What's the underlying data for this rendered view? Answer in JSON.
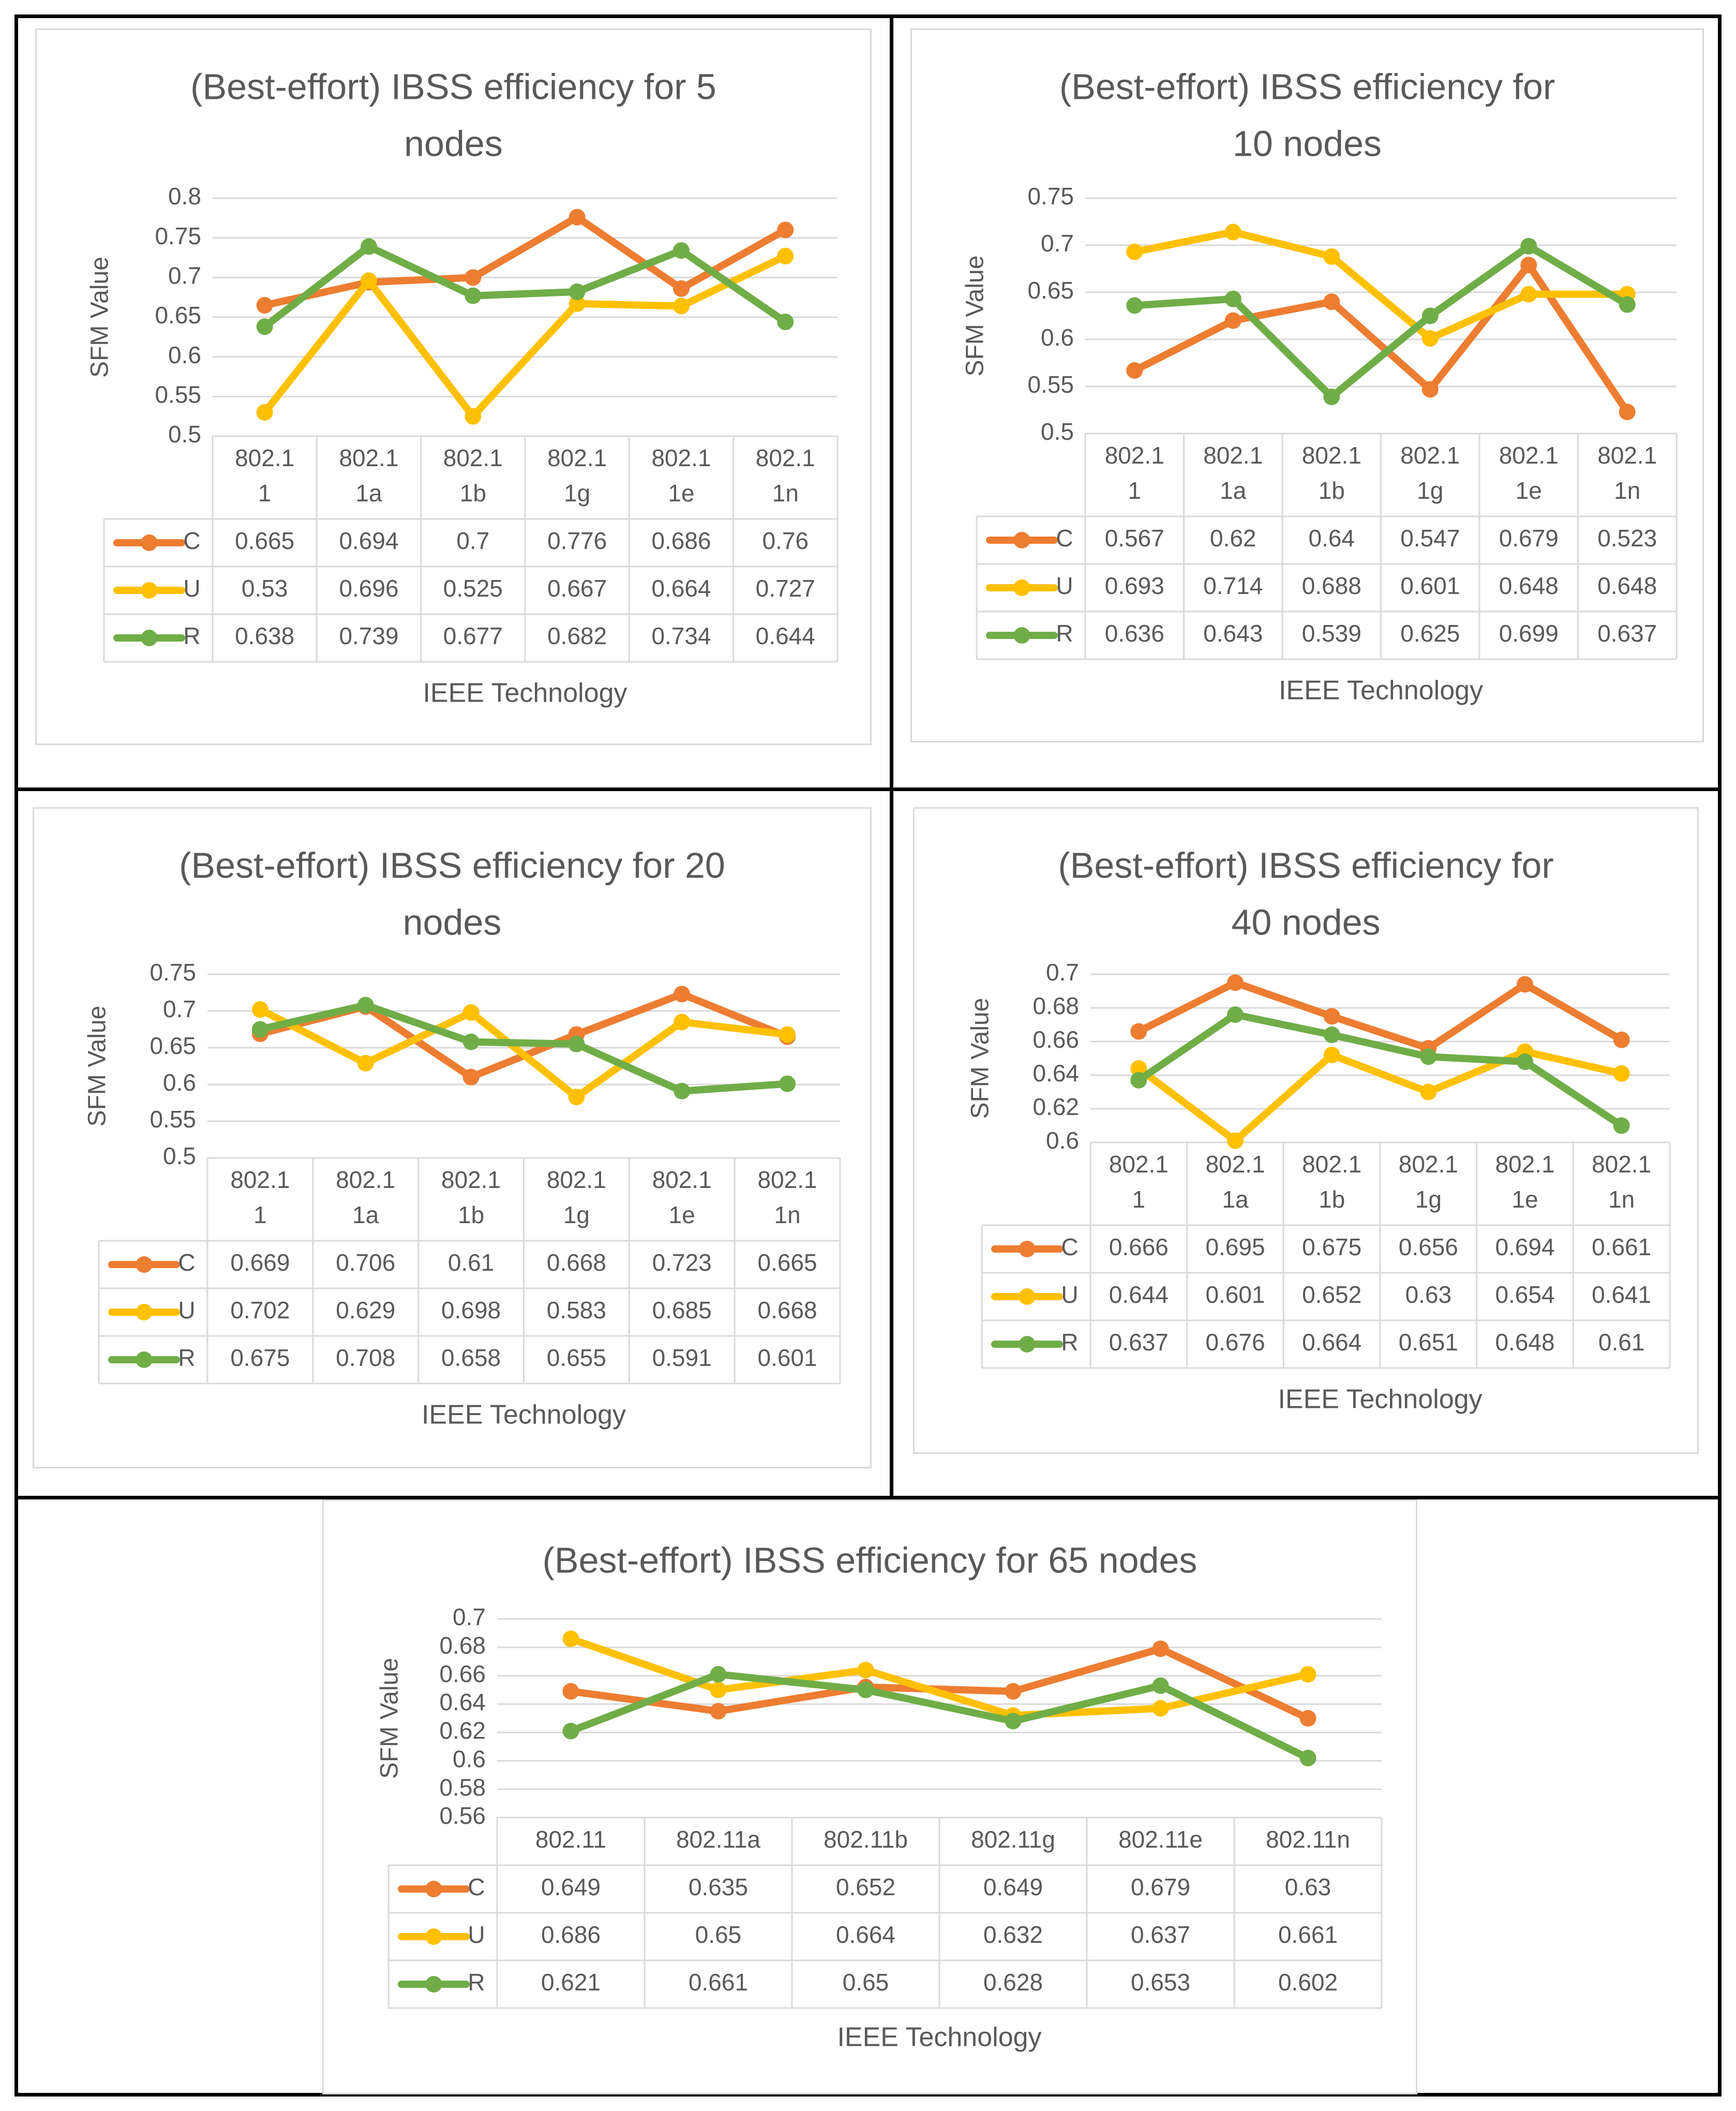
{
  "colors": {
    "C": "#ED7D31",
    "U": "#FFC000",
    "R": "#70AD47",
    "text": "#595959",
    "grid": "#d9d9d9"
  },
  "chart_data": [
    {
      "type": "line",
      "title": "(Best-effort) IBSS efficiency for 5 nodes",
      "title_lines": [
        "(Best-effort) IBSS efficiency for 5",
        "nodes"
      ],
      "ylabel": "SFM Value",
      "xlabel": "IEEE Technology",
      "ylim": [
        0.5,
        0.8
      ],
      "y_ticks": [
        "0.5",
        "0.55",
        "0.6",
        "0.65",
        "0.7",
        "0.75",
        "0.8"
      ],
      "grid": true,
      "legend": "data table",
      "categories": [
        "802.11",
        "802.11a",
        "802.11b",
        "802.11g",
        "802.11e",
        "802.11n"
      ],
      "category_lines": [
        [
          "802.1",
          "1"
        ],
        [
          "802.1",
          "1a"
        ],
        [
          "802.1",
          "1b"
        ],
        [
          "802.1",
          "1g"
        ],
        [
          "802.1",
          "1e"
        ],
        [
          "802.1",
          "1n"
        ]
      ],
      "series": [
        {
          "name": "C",
          "values": [
            0.665,
            0.694,
            0.7,
            0.776,
            0.686,
            0.76
          ],
          "labels": [
            "0.665",
            "0.694",
            "0.7",
            "0.776",
            "0.686",
            "0.76"
          ]
        },
        {
          "name": "U",
          "values": [
            0.53,
            0.696,
            0.525,
            0.667,
            0.664,
            0.727
          ],
          "labels": [
            "0.53",
            "0.696",
            "0.525",
            "0.667",
            "0.664",
            "0.727"
          ]
        },
        {
          "name": "R",
          "values": [
            0.638,
            0.739,
            0.677,
            0.682,
            0.734,
            0.644
          ],
          "labels": [
            "0.638",
            "0.739",
            "0.677",
            "0.682",
            "0.734",
            "0.644"
          ]
        }
      ]
    },
    {
      "type": "line",
      "title": "(Best-effort) IBSS efficiency for 10 nodes",
      "title_lines": [
        "(Best-effort) IBSS efficiency for",
        "10 nodes"
      ],
      "ylabel": "SFM Value",
      "xlabel": "IEEE Technology",
      "ylim": [
        0.5,
        0.75
      ],
      "y_ticks": [
        "0.5",
        "0.55",
        "0.6",
        "0.65",
        "0.7",
        "0.75"
      ],
      "grid": true,
      "legend": "data table",
      "categories": [
        "802.11",
        "802.11a",
        "802.11b",
        "802.11g",
        "802.11e",
        "802.11n"
      ],
      "category_lines": [
        [
          "802.1",
          "1"
        ],
        [
          "802.1",
          "1a"
        ],
        [
          "802.1",
          "1b"
        ],
        [
          "802.1",
          "1g"
        ],
        [
          "802.1",
          "1e"
        ],
        [
          "802.1",
          "1n"
        ]
      ],
      "series": [
        {
          "name": "C",
          "values": [
            0.567,
            0.62,
            0.64,
            0.547,
            0.679,
            0.523
          ],
          "labels": [
            "0.567",
            "0.62",
            "0.64",
            "0.547",
            "0.679",
            "0.523"
          ]
        },
        {
          "name": "U",
          "values": [
            0.693,
            0.714,
            0.688,
            0.601,
            0.648,
            0.648
          ],
          "labels": [
            "0.693",
            "0.714",
            "0.688",
            "0.601",
            "0.648",
            "0.648"
          ]
        },
        {
          "name": "R",
          "values": [
            0.636,
            0.643,
            0.539,
            0.625,
            0.699,
            0.637
          ],
          "labels": [
            "0.636",
            "0.643",
            "0.539",
            "0.625",
            "0.699",
            "0.637"
          ]
        }
      ]
    },
    {
      "type": "line",
      "title": "(Best-effort) IBSS efficiency for 20 nodes",
      "title_lines": [
        "(Best-effort) IBSS efficiency for 20",
        "nodes"
      ],
      "ylabel": "SFM Value",
      "xlabel": "IEEE Technology",
      "ylim": [
        0.5,
        0.75
      ],
      "y_ticks": [
        "0.5",
        "0.55",
        "0.6",
        "0.65",
        "0.7",
        "0.75"
      ],
      "grid": true,
      "legend": "data table",
      "categories": [
        "802.11",
        "802.11a",
        "802.11b",
        "802.11g",
        "802.11e",
        "802.11n"
      ],
      "category_lines": [
        [
          "802.1",
          "1"
        ],
        [
          "802.1",
          "1a"
        ],
        [
          "802.1",
          "1b"
        ],
        [
          "802.1",
          "1g"
        ],
        [
          "802.1",
          "1e"
        ],
        [
          "802.1",
          "1n"
        ]
      ],
      "series": [
        {
          "name": "C",
          "values": [
            0.669,
            0.706,
            0.61,
            0.668,
            0.723,
            0.665
          ],
          "labels": [
            "0.669",
            "0.706",
            "0.61",
            "0.668",
            "0.723",
            "0.665"
          ]
        },
        {
          "name": "U",
          "values": [
            0.702,
            0.629,
            0.698,
            0.583,
            0.685,
            0.668
          ],
          "labels": [
            "0.702",
            "0.629",
            "0.698",
            "0.583",
            "0.685",
            "0.668"
          ]
        },
        {
          "name": "R",
          "values": [
            0.675,
            0.708,
            0.658,
            0.655,
            0.591,
            0.601
          ],
          "labels": [
            "0.675",
            "0.708",
            "0.658",
            "0.655",
            "0.591",
            "0.601"
          ]
        }
      ]
    },
    {
      "type": "line",
      "title": "(Best-effort) IBSS efficiency for 40 nodes",
      "title_lines": [
        "(Best-effort) IBSS efficiency for",
        "40 nodes"
      ],
      "ylabel": "SFM Value",
      "xlabel": "IEEE Technology",
      "ylim": [
        0.6,
        0.7
      ],
      "y_ticks": [
        "0.6",
        "0.62",
        "0.64",
        "0.66",
        "0.68",
        "0.7"
      ],
      "grid": true,
      "legend": "data table",
      "categories": [
        "802.11",
        "802.11a",
        "802.11b",
        "802.11g",
        "802.11e",
        "802.11n"
      ],
      "category_lines": [
        [
          "802.1",
          "1"
        ],
        [
          "802.1",
          "1a"
        ],
        [
          "802.1",
          "1b"
        ],
        [
          "802.1",
          "1g"
        ],
        [
          "802.1",
          "1e"
        ],
        [
          "802.1",
          "1n"
        ]
      ],
      "series": [
        {
          "name": "C",
          "values": [
            0.666,
            0.695,
            0.675,
            0.656,
            0.694,
            0.661
          ],
          "labels": [
            "0.666",
            "0.695",
            "0.675",
            "0.656",
            "0.694",
            "0.661"
          ]
        },
        {
          "name": "U",
          "values": [
            0.644,
            0.601,
            0.652,
            0.63,
            0.654,
            0.641
          ],
          "labels": [
            "0.644",
            "0.601",
            "0.652",
            "0.63",
            "0.654",
            "0.641"
          ]
        },
        {
          "name": "R",
          "values": [
            0.637,
            0.676,
            0.664,
            0.651,
            0.648,
            0.61
          ],
          "labels": [
            "0.637",
            "0.676",
            "0.664",
            "0.651",
            "0.648",
            "0.61"
          ]
        }
      ]
    },
    {
      "type": "line",
      "title": "(Best-effort) IBSS efficiency for 65 nodes",
      "title_lines": [
        "(Best-effort) IBSS efficiency for 65 nodes"
      ],
      "ylabel": "SFM Value",
      "xlabel": "IEEE Technology",
      "ylim": [
        0.56,
        0.7
      ],
      "y_ticks": [
        "0.56",
        "0.58",
        "0.6",
        "0.62",
        "0.64",
        "0.66",
        "0.68",
        "0.7"
      ],
      "grid": true,
      "legend": "data table",
      "categories": [
        "802.11",
        "802.11a",
        "802.11b",
        "802.11g",
        "802.11e",
        "802.11n"
      ],
      "category_lines": [
        [
          "802.11"
        ],
        [
          "802.11a"
        ],
        [
          "802.11b"
        ],
        [
          "802.11g"
        ],
        [
          "802.11e"
        ],
        [
          "802.11n"
        ]
      ],
      "series": [
        {
          "name": "C",
          "values": [
            0.649,
            0.635,
            0.652,
            0.649,
            0.679,
            0.63
          ],
          "labels": [
            "0.649",
            "0.635",
            "0.652",
            "0.649",
            "0.679",
            "0.63"
          ]
        },
        {
          "name": "U",
          "values": [
            0.686,
            0.65,
            0.664,
            0.632,
            0.637,
            0.661
          ],
          "labels": [
            "0.686",
            "0.65",
            "0.664",
            "0.632",
            "0.637",
            "0.661"
          ]
        },
        {
          "name": "R",
          "values": [
            0.621,
            0.661,
            0.65,
            0.628,
            0.653,
            0.602
          ],
          "labels": [
            "0.621",
            "0.661",
            "0.65",
            "0.628",
            "0.653",
            "0.602"
          ]
        }
      ]
    }
  ]
}
